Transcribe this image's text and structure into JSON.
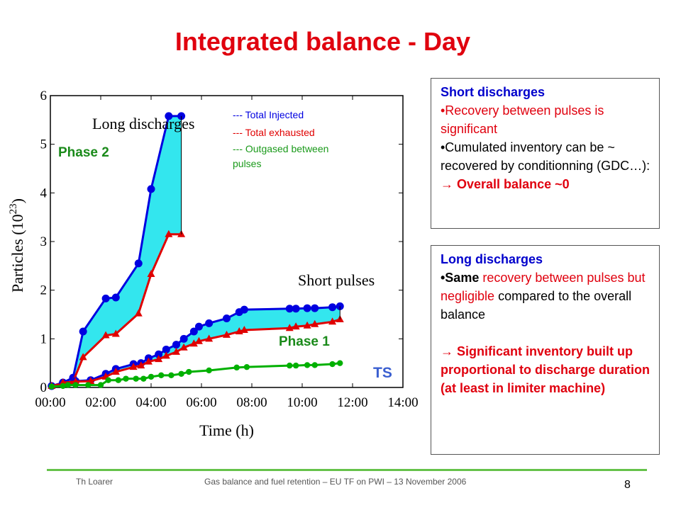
{
  "slide": {
    "title": "Integrated balance - Day",
    "footer_left": "Th Loarer",
    "footer_center": "Gas balance and fuel retention – EU TF on PWI – 13 November 2006",
    "page_number": "8"
  },
  "colors": {
    "title": "#e0000e",
    "injected": "#0000e0",
    "exhausted": "#e00000",
    "outgased": "#00b000",
    "fill": "#33e6ee",
    "footer_line": "#66c24a"
  },
  "chart_data": {
    "type": "line",
    "xlabel": "Time (h)",
    "ylabel": "Particles (10",
    "ylabel_sup": "23",
    "ylabel_end": ")",
    "x_ticks": [
      "00:00",
      "02:00",
      "04:00",
      "06:00",
      "08:00",
      "10:00",
      "12:00",
      "14:00"
    ],
    "y_ticks": [
      "0",
      "1",
      "2",
      "3",
      "4",
      "5",
      "6"
    ],
    "xlim": [
      0,
      14
    ],
    "ylim": [
      0,
      6
    ],
    "legend": [
      "--- Total Injected",
      "--- Total exhausted",
      "--- Outgased between pulses"
    ],
    "annotations": {
      "long": "Long discharges",
      "short": "Short pulses",
      "phase2": "Phase 2",
      "phase1": "Phase 1",
      "ts": "TS"
    },
    "series": [
      {
        "name": "Total Injected",
        "color": "#0000e0",
        "marker": "circle",
        "x": [
          0.05,
          0.5,
          0.9,
          1.3,
          2.2,
          2.6,
          3.5,
          4.0,
          4.7,
          5.2
        ],
        "y": [
          0.03,
          0.1,
          0.2,
          1.15,
          1.83,
          1.85,
          2.55,
          4.08,
          5.58,
          5.58
        ]
      },
      {
        "name": "Total exhausted",
        "color": "#e00000",
        "marker": "triangle",
        "x": [
          0.05,
          0.5,
          0.9,
          1.3,
          2.2,
          2.6,
          3.5,
          4.0,
          4.7,
          5.2
        ],
        "y": [
          0.03,
          0.08,
          0.12,
          0.62,
          1.07,
          1.1,
          1.52,
          2.33,
          3.15,
          3.15
        ]
      },
      {
        "name": "Total Injected",
        "color": "#0000e0",
        "marker": "circle",
        "x": [
          0.5,
          1.0,
          1.6,
          2.2,
          2.6,
          3.3,
          3.6,
          3.9,
          4.3,
          4.6,
          5.0,
          5.3,
          5.7,
          5.9,
          6.3,
          7.0,
          7.5,
          7.7,
          9.5,
          9.75,
          10.2,
          10.5,
          11.2,
          11.5
        ],
        "y": [
          0.1,
          0.13,
          0.15,
          0.28,
          0.38,
          0.48,
          0.5,
          0.6,
          0.68,
          0.78,
          0.88,
          1.0,
          1.15,
          1.25,
          1.32,
          1.42,
          1.55,
          1.6,
          1.62,
          1.62,
          1.63,
          1.63,
          1.65,
          1.67
        ]
      },
      {
        "name": "Total exhausted",
        "color": "#e00000",
        "marker": "triangle",
        "x": [
          0.5,
          1.0,
          1.6,
          2.2,
          2.6,
          3.3,
          3.6,
          3.9,
          4.3,
          4.6,
          5.0,
          5.3,
          5.7,
          5.9,
          6.3,
          7.0,
          7.5,
          7.7,
          9.5,
          9.75,
          10.2,
          10.5,
          11.2,
          11.5
        ],
        "y": [
          0.1,
          0.12,
          0.13,
          0.22,
          0.32,
          0.42,
          0.45,
          0.53,
          0.58,
          0.65,
          0.73,
          0.82,
          0.9,
          0.95,
          1.0,
          1.08,
          1.15,
          1.18,
          1.22,
          1.25,
          1.27,
          1.3,
          1.35,
          1.4
        ]
      },
      {
        "name": "Outgased between pulses",
        "color": "#00b000",
        "marker": "circle",
        "x": [
          0.05,
          0.5,
          0.7,
          1.0,
          1.5,
          2.0,
          2.3,
          2.7,
          3.0,
          3.4,
          3.7,
          4.0,
          4.4,
          4.8,
          5.2,
          5.5,
          6.3,
          7.4,
          7.8,
          9.5,
          9.75,
          10.2,
          10.5,
          11.2,
          11.5
        ],
        "y": [
          0.02,
          0.03,
          0.05,
          0.05,
          0.05,
          0.05,
          0.15,
          0.15,
          0.18,
          0.18,
          0.18,
          0.22,
          0.25,
          0.25,
          0.28,
          0.32,
          0.35,
          0.41,
          0.42,
          0.45,
          0.45,
          0.46,
          0.46,
          0.48,
          0.5
        ]
      }
    ]
  },
  "boxes": {
    "short": {
      "heading": "Short discharges",
      "line1": "•Recovery between pulses is significant",
      "line2": "•Cumulated inventory can be ~ recovered by conditionning (GDC…):",
      "conclusion": "Overall balance ~0"
    },
    "long": {
      "heading": "Long discharges",
      "b1": "•Same",
      "b2": " recovery between pulses but negligible",
      "b3": " compared to the overall balance",
      "conclusion": "Significant inventory built up proportional to discharge duration (at least in limiter machine)"
    }
  }
}
